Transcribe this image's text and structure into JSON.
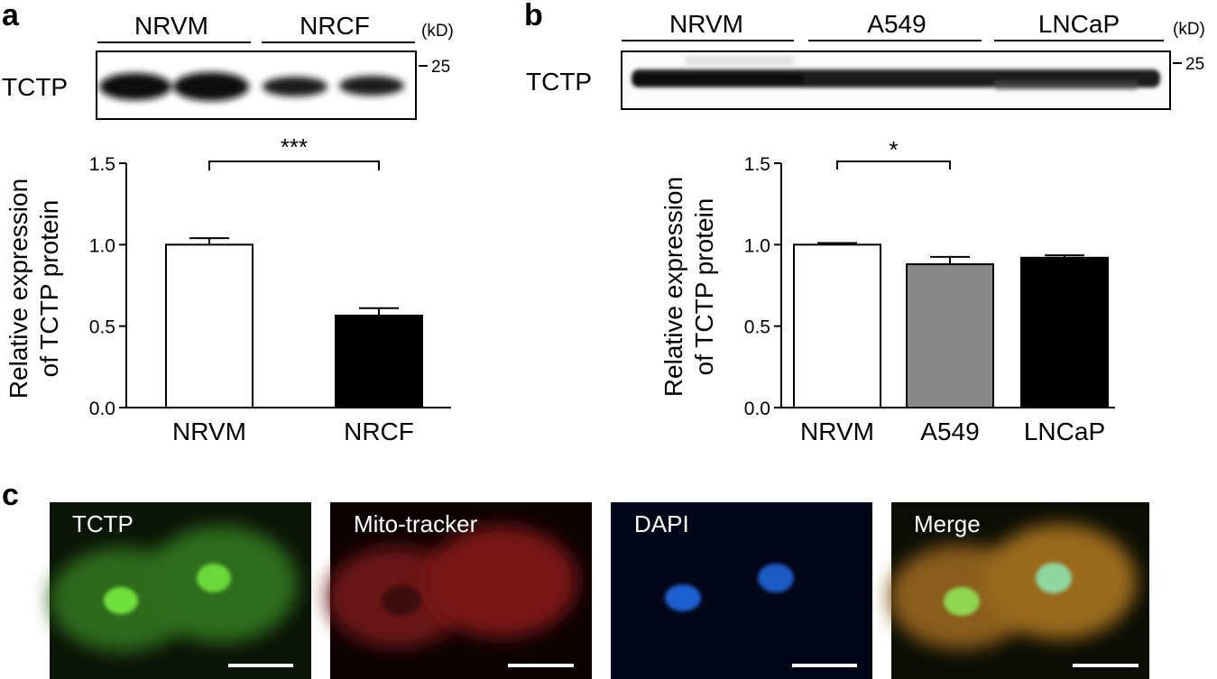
{
  "panel_a": {
    "letter": "a",
    "blot": {
      "groups": [
        "NRVM",
        "NRCF"
      ],
      "unit": "(kD)",
      "protein": "TCTP",
      "marker": "25"
    }
  },
  "panel_b": {
    "letter": "b",
    "blot": {
      "groups": [
        "NRVM",
        "A549",
        "LNCaP"
      ],
      "unit": "(kD)",
      "protein": "TCTP",
      "marker": "25"
    }
  },
  "panel_c": {
    "letter": "c",
    "images": [
      {
        "title": "TCTP",
        "color": "#49b52d"
      },
      {
        "title": "Mito-tracker",
        "color": "#9b1c1c"
      },
      {
        "title": "DAPI",
        "color": "#1d5fc2"
      },
      {
        "title": "Merge",
        "color": "#a8852c"
      }
    ]
  },
  "chart_data": [
    {
      "type": "bar",
      "categories": [
        "NRVM",
        "NRCF"
      ],
      "values": [
        1.0,
        0.565
      ],
      "errors": [
        0.04,
        0.045
      ],
      "bar_colors": [
        "#ffffff",
        "#000000"
      ],
      "ylabel_line1": "Relative expression",
      "ylabel_line2": "of TCTP protein",
      "ylim": [
        0,
        1.5
      ],
      "yticks": [
        "0.0",
        "0.5",
        "1.0",
        "1.5"
      ],
      "yticks_values": [
        0,
        0.5,
        1.0,
        1.5
      ],
      "significance": [
        {
          "from": 0,
          "to": 1,
          "label": "***"
        }
      ]
    },
    {
      "type": "bar",
      "categories": [
        "NRVM",
        "A549",
        "LNCaP"
      ],
      "values": [
        1.0,
        0.88,
        0.92
      ],
      "errors": [
        0.01,
        0.045,
        0.015
      ],
      "bar_colors": [
        "#ffffff",
        "#888888",
        "#000000"
      ],
      "ylabel_line1": "Relative expression",
      "ylabel_line2": "of TCTP protein",
      "ylim": [
        0,
        1.5
      ],
      "yticks": [
        "0.0",
        "0.5",
        "1.0",
        "1.5"
      ],
      "yticks_values": [
        0,
        0.5,
        1.0,
        1.5
      ],
      "significance": [
        {
          "from": 0,
          "to": 1,
          "label": "*"
        }
      ]
    }
  ]
}
